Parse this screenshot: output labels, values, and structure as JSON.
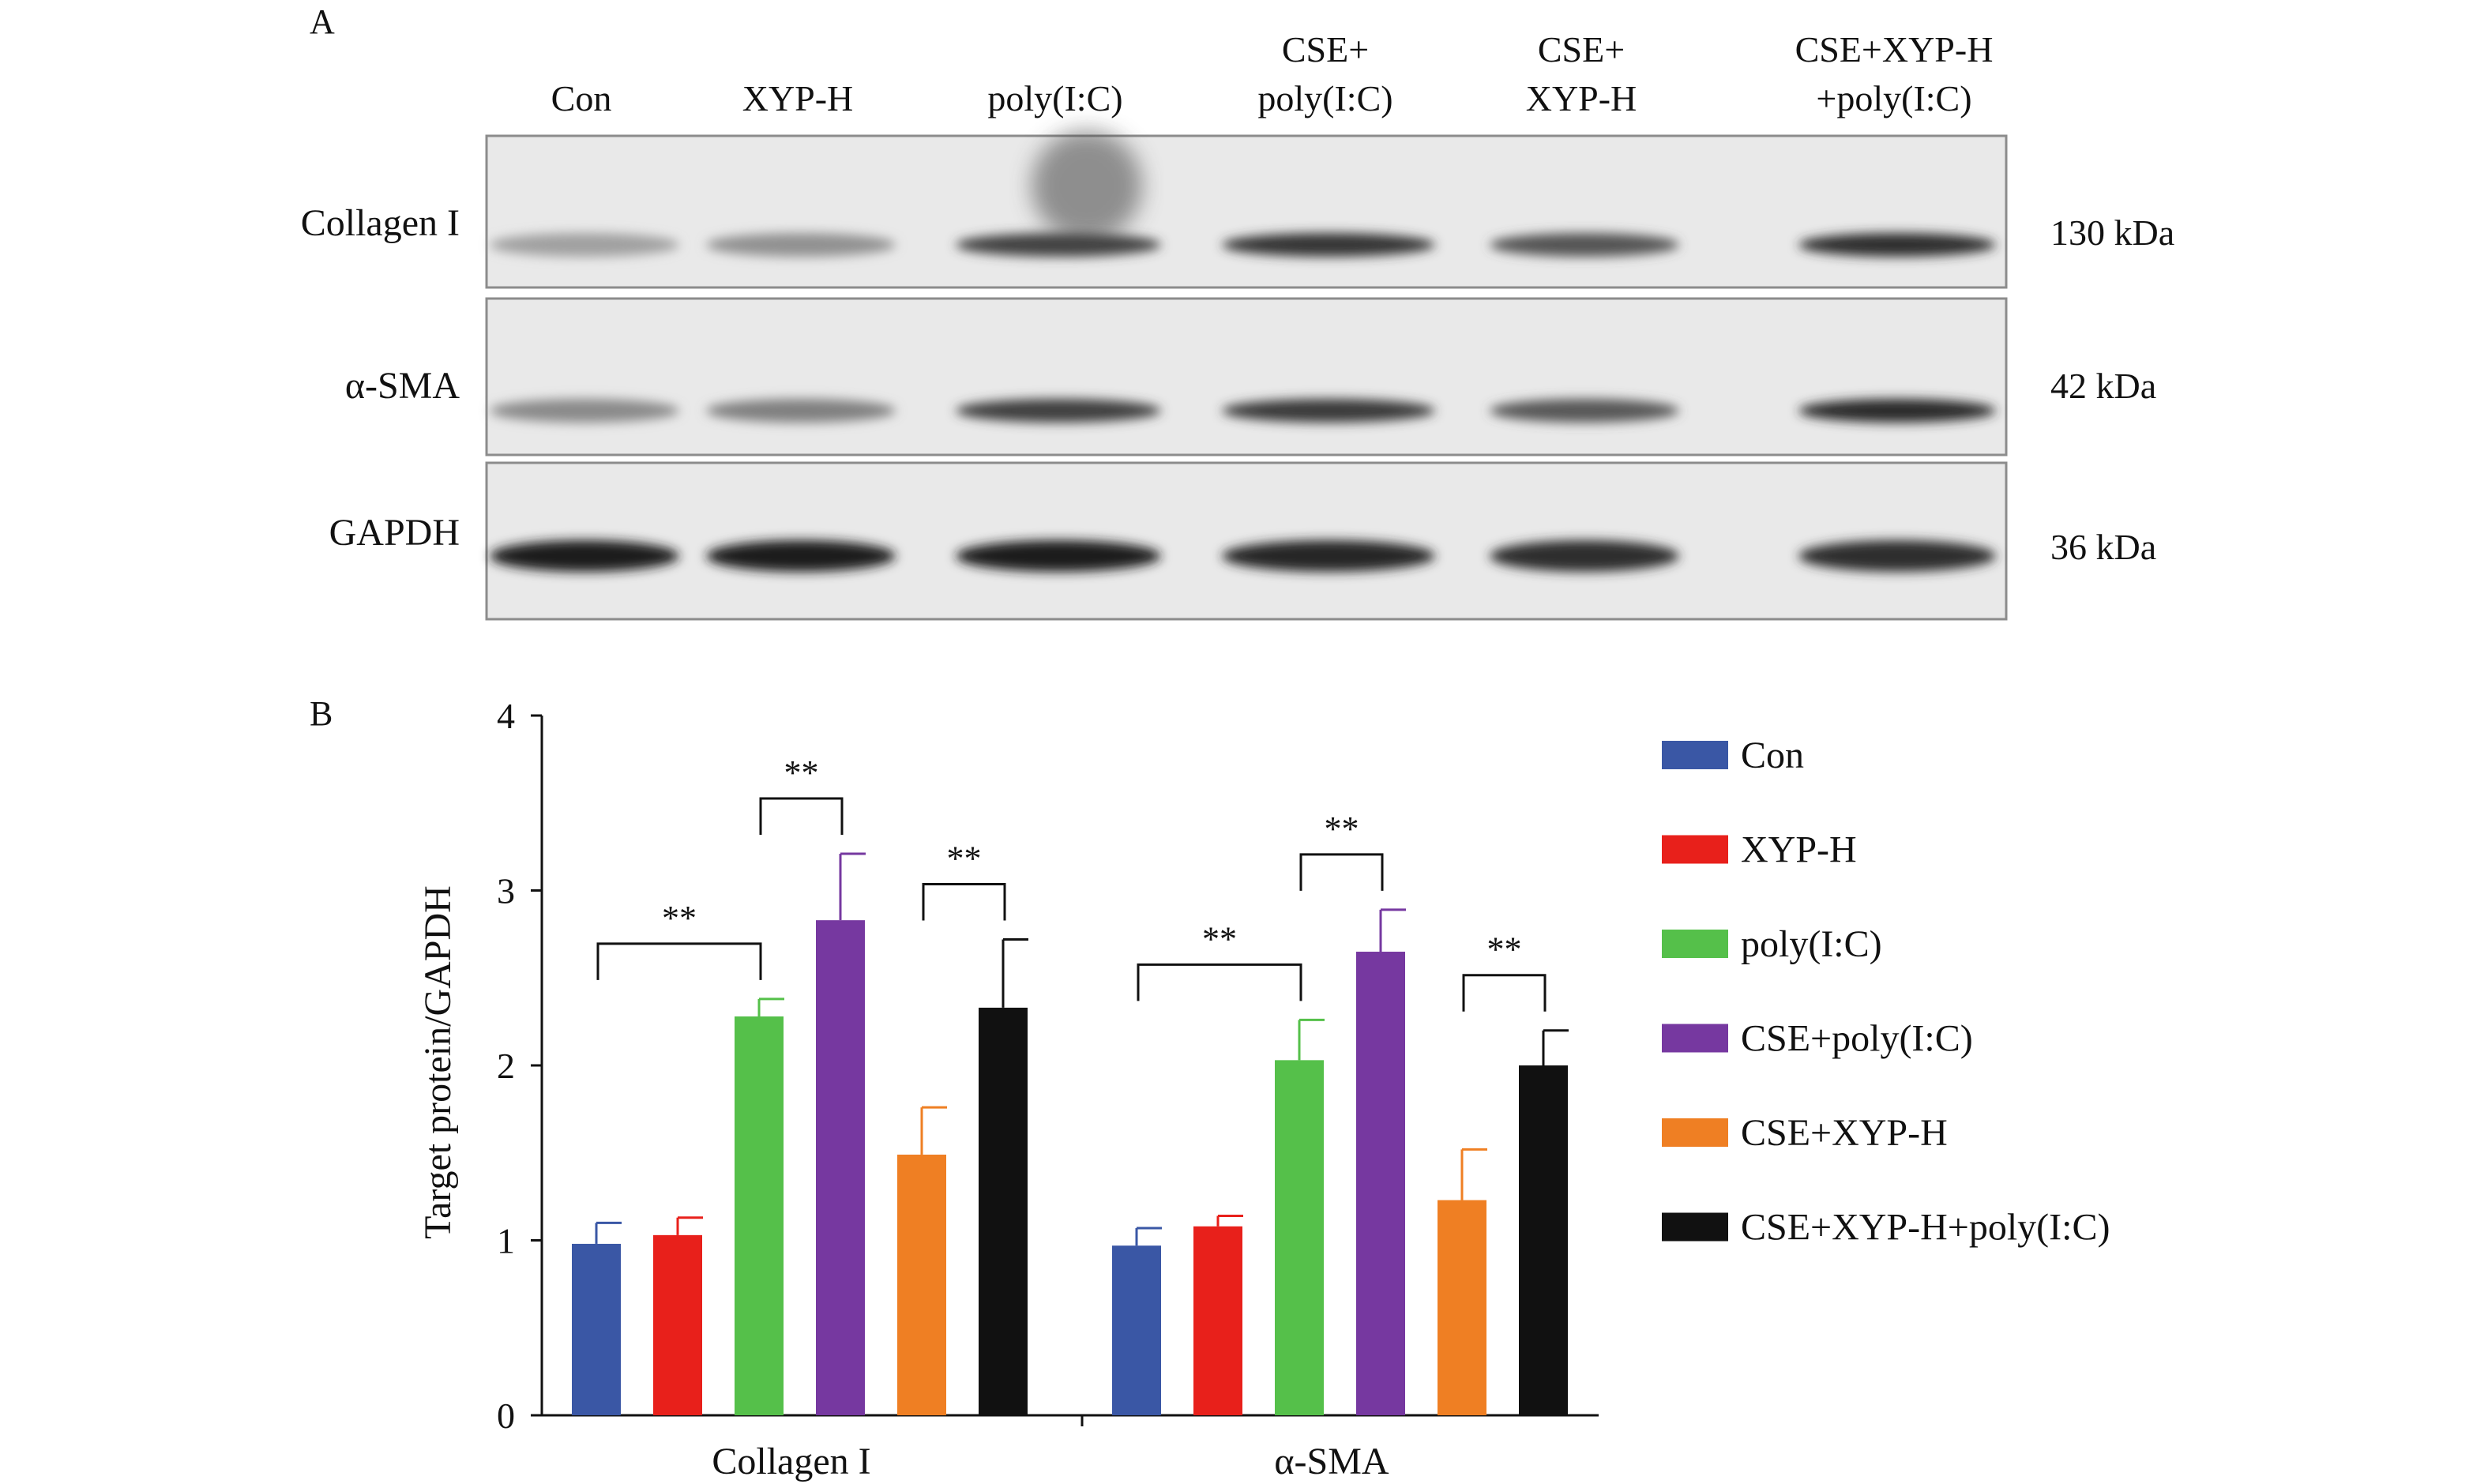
{
  "panel_a": {
    "label": "A",
    "lanes": [
      [
        "Con"
      ],
      [
        "XYP-H"
      ],
      [
        "poly(I:C)"
      ],
      [
        "CSE+",
        "poly(I:C)"
      ],
      [
        "CSE+",
        "XYP-H"
      ],
      [
        "CSE+XYP-H",
        "+poly(I:C)"
      ]
    ],
    "blots": [
      {
        "name": "Collagen I",
        "size": "130 kDa",
        "intensity": [
          0.35,
          0.42,
          0.78,
          0.85,
          0.7,
          0.88
        ]
      },
      {
        "name": "α-SMA",
        "size": "42 kDa",
        "intensity": [
          0.45,
          0.5,
          0.8,
          0.82,
          0.68,
          0.9
        ]
      },
      {
        "name": "GAPDH",
        "size": "36 kDa",
        "intensity": [
          0.95,
          0.95,
          0.95,
          0.92,
          0.88,
          0.88
        ]
      }
    ]
  },
  "panel_b": {
    "label": "B"
  },
  "chart_data": {
    "type": "bar",
    "categories": [
      "Collagen I",
      "α-SMA"
    ],
    "ylabel": "Target protein/GAPDH",
    "ylim": [
      0,
      4
    ],
    "yticks": [
      0,
      1,
      2,
      3,
      4
    ],
    "legend_position": "right",
    "series": [
      {
        "name": "Con",
        "color": "#3A57A5",
        "values": [
          0.98,
          0.97
        ],
        "errors": [
          0.12,
          0.1
        ]
      },
      {
        "name": "XYP-H",
        "color": "#E8201B",
        "values": [
          1.03,
          1.08
        ],
        "errors": [
          0.1,
          0.06
        ]
      },
      {
        "name": "poly(I:C)",
        "color": "#55C04A",
        "values": [
          2.28,
          2.03
        ],
        "errors": [
          0.1,
          0.23
        ]
      },
      {
        "name": "CSE+poly(I:C)",
        "color": "#7638A0",
        "values": [
          2.83,
          2.65
        ],
        "errors": [
          0.38,
          0.24
        ]
      },
      {
        "name": "CSE+XYP-H",
        "color": "#EF7F23",
        "values": [
          1.49,
          1.23
        ],
        "errors": [
          0.27,
          0.29
        ]
      },
      {
        "name": "CSE+XYP-H+poly(I:C)",
        "color": "#111111",
        "values": [
          2.33,
          2.0
        ],
        "errors": [
          0.39,
          0.2
        ]
      }
    ],
    "significance": [
      {
        "category": 0,
        "from": 0,
        "to": 2,
        "label": "**"
      },
      {
        "category": 0,
        "from": 2,
        "to": 3,
        "label": "**"
      },
      {
        "category": 0,
        "from": 4,
        "to": 5,
        "label": "**"
      },
      {
        "category": 1,
        "from": 0,
        "to": 2,
        "label": "**"
      },
      {
        "category": 1,
        "from": 2,
        "to": 3,
        "label": "**"
      },
      {
        "category": 1,
        "from": 4,
        "to": 5,
        "label": "**"
      }
    ]
  }
}
